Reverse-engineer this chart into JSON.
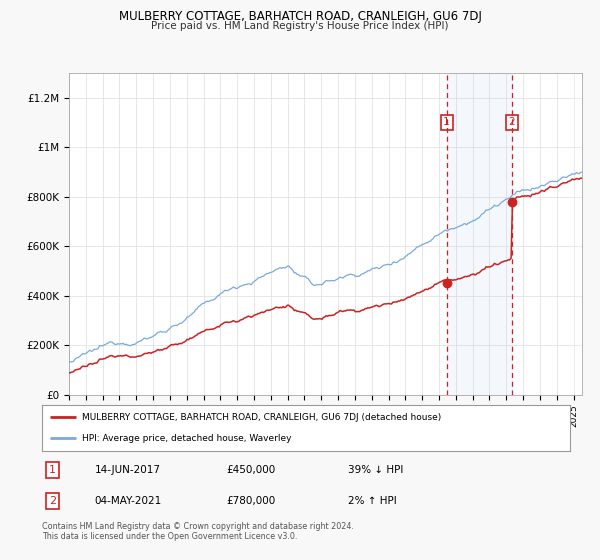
{
  "title": "MULBERRY COTTAGE, BARHATCH ROAD, CRANLEIGH, GU6 7DJ",
  "subtitle": "Price paid vs. HM Land Registry's House Price Index (HPI)",
  "hpi_color": "#7aaadd",
  "price_color": "#cc2222",
  "background_color": "#f8f8f8",
  "plot_bg": "#ffffff",
  "ylim": [
    0,
    1300000
  ],
  "yticks": [
    0,
    200000,
    400000,
    600000,
    800000,
    1000000,
    1200000
  ],
  "ytick_labels": [
    "£0",
    "£200K",
    "£400K",
    "£600K",
    "£800K",
    "£1M",
    "£1.2M"
  ],
  "sale1_date": "14-JUN-2017",
  "sale1_price": 450000,
  "sale1_pct": "39% ↓ HPI",
  "sale1_label": "1",
  "sale2_date": "04-MAY-2021",
  "sale2_price": 780000,
  "sale2_pct": "2% ↑ HPI",
  "sale2_label": "2",
  "legend_line1": "MULBERRY COTTAGE, BARHATCH ROAD, CRANLEIGH, GU6 7DJ (detached house)",
  "legend_line2": "HPI: Average price, detached house, Waverley",
  "footer": "Contains HM Land Registry data © Crown copyright and database right 2024.\nThis data is licensed under the Open Government Licence v3.0.",
  "sale1_year": 2017.45,
  "sale2_year": 2021.34,
  "xmin": 1995,
  "xmax": 2025.5
}
